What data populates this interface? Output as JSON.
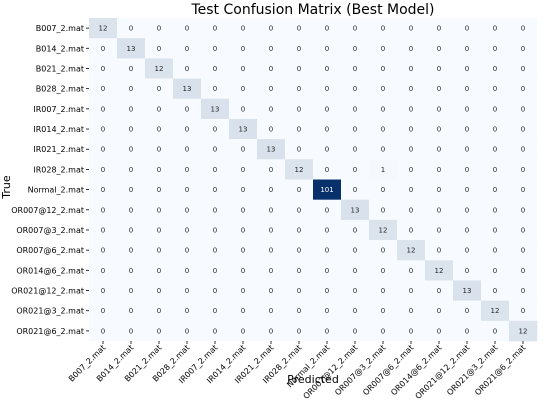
{
  "chart_data": {
    "type": "heatmap",
    "title": "Test Confusion Matrix (Best Model)",
    "xlabel": "Predicted",
    "ylabel": "True",
    "grid": false,
    "colorscale": {
      "low": "#f7fbff",
      "high": "#08306b"
    },
    "classes": [
      "B007_2.mat",
      "B014_2.mat",
      "B021_2.mat",
      "B028_2.mat",
      "IR007_2.mat",
      "IR014_2.mat",
      "IR021_2.mat",
      "IR028_2.mat",
      "Normal_2.mat",
      "OR007@12_2.mat",
      "OR007@3_2.mat",
      "OR007@6_2.mat",
      "OR014@6_2.mat",
      "OR021@12_2.mat",
      "OR021@3_2.mat",
      "OR021@6_2.mat"
    ],
    "values": [
      [
        12,
        0,
        0,
        0,
        0,
        0,
        0,
        0,
        0,
        0,
        0,
        0,
        0,
        0,
        0,
        0
      ],
      [
        0,
        13,
        0,
        0,
        0,
        0,
        0,
        0,
        0,
        0,
        0,
        0,
        0,
        0,
        0,
        0
      ],
      [
        0,
        0,
        12,
        0,
        0,
        0,
        0,
        0,
        0,
        0,
        0,
        0,
        0,
        0,
        0,
        0
      ],
      [
        0,
        0,
        0,
        13,
        0,
        0,
        0,
        0,
        0,
        0,
        0,
        0,
        0,
        0,
        0,
        0
      ],
      [
        0,
        0,
        0,
        0,
        13,
        0,
        0,
        0,
        0,
        0,
        0,
        0,
        0,
        0,
        0,
        0
      ],
      [
        0,
        0,
        0,
        0,
        0,
        13,
        0,
        0,
        0,
        0,
        0,
        0,
        0,
        0,
        0,
        0
      ],
      [
        0,
        0,
        0,
        0,
        0,
        0,
        13,
        0,
        0,
        0,
        0,
        0,
        0,
        0,
        0,
        0
      ],
      [
        0,
        0,
        0,
        0,
        0,
        0,
        0,
        12,
        0,
        0,
        1,
        0,
        0,
        0,
        0,
        0
      ],
      [
        0,
        0,
        0,
        0,
        0,
        0,
        0,
        0,
        101,
        0,
        0,
        0,
        0,
        0,
        0,
        0
      ],
      [
        0,
        0,
        0,
        0,
        0,
        0,
        0,
        0,
        0,
        13,
        0,
        0,
        0,
        0,
        0,
        0
      ],
      [
        0,
        0,
        0,
        0,
        0,
        0,
        0,
        0,
        0,
        0,
        12,
        0,
        0,
        0,
        0,
        0
      ],
      [
        0,
        0,
        0,
        0,
        0,
        0,
        0,
        0,
        0,
        0,
        0,
        12,
        0,
        0,
        0,
        0
      ],
      [
        0,
        0,
        0,
        0,
        0,
        0,
        0,
        0,
        0,
        0,
        0,
        0,
        12,
        0,
        0,
        0
      ],
      [
        0,
        0,
        0,
        0,
        0,
        0,
        0,
        0,
        0,
        0,
        0,
        0,
        0,
        13,
        0,
        0
      ],
      [
        0,
        0,
        0,
        0,
        0,
        0,
        0,
        0,
        0,
        0,
        0,
        0,
        0,
        0,
        12,
        0
      ],
      [
        0,
        0,
        0,
        0,
        0,
        0,
        0,
        0,
        0,
        0,
        0,
        0,
        0,
        0,
        0,
        12
      ]
    ]
  }
}
